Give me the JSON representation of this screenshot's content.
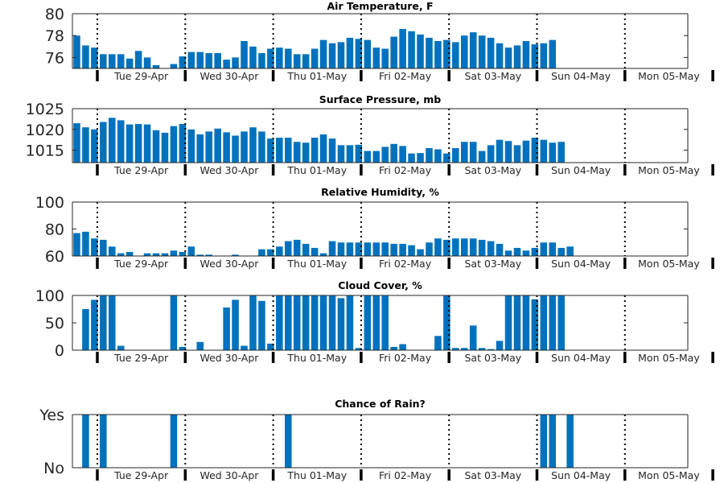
{
  "colors": {
    "bar": "#0072bd",
    "axis": "#262626",
    "divider": "#000000"
  },
  "day_labels": [
    "Tue 29-Apr",
    "Wed 30-Apr",
    "Thu 01-May",
    "Fri 02-May",
    "Sat 03-May",
    "Sun 04-May",
    "Mon 05-May"
  ],
  "chart_data": [
    {
      "type": "bar",
      "title": "Air Temperature, F",
      "ylim": [
        75,
        80
      ],
      "yticks": [
        76,
        78,
        80
      ],
      "ytick_labels": [
        "76",
        "78",
        "80"
      ],
      "x_step_hours": 3,
      "values": [
        78.0,
        77.1,
        76.9,
        76.3,
        76.3,
        76.3,
        75.9,
        76.6,
        76.0,
        75.3,
        75.0,
        75.4,
        76.1,
        76.5,
        76.5,
        76.4,
        76.4,
        75.8,
        76.0,
        77.5,
        77.0,
        76.4,
        76.8,
        76.9,
        76.8,
        76.3,
        76.3,
        76.8,
        77.6,
        77.3,
        77.4,
        77.8,
        77.7,
        77.6,
        76.9,
        76.8,
        77.9,
        78.6,
        78.4,
        78.1,
        77.8,
        77.5,
        77.6,
        77.4,
        78.0,
        78.3,
        78.0,
        77.8,
        77.3,
        76.9,
        77.1,
        77.5,
        77.2,
        77.3,
        77.6
      ]
    },
    {
      "type": "bar",
      "title": "Surface Pressure, mb",
      "ylim": [
        1012,
        1025
      ],
      "yticks": [
        1015,
        1020,
        1025
      ],
      "ytick_labels": [
        "1015",
        "1020",
        "1025"
      ],
      "x_step_hours": 3,
      "values": [
        1021.5,
        1020.5,
        1020.0,
        1021.8,
        1022.8,
        1022.2,
        1021.2,
        1021.3,
        1021.2,
        1019.8,
        1019.2,
        1020.8,
        1021.3,
        1020.0,
        1018.8,
        1019.5,
        1020.2,
        1019.3,
        1018.5,
        1019.5,
        1020.5,
        1019.5,
        1017.8,
        1018.0,
        1018.0,
        1017.0,
        1016.8,
        1018.0,
        1018.8,
        1017.8,
        1016.2,
        1016.2,
        1016.3,
        1014.8,
        1014.8,
        1015.8,
        1016.5,
        1016.0,
        1014.2,
        1014.3,
        1015.5,
        1015.2,
        1014.2,
        1015.5,
        1017.0,
        1017.0,
        1014.8,
        1016.2,
        1017.5,
        1017.2,
        1016.2,
        1017.3,
        1018.0,
        1017.5,
        1016.8,
        1017.0
      ]
    },
    {
      "type": "bar",
      "title": "Relative Humidity, %",
      "ylim": [
        60,
        100
      ],
      "yticks": [
        60,
        80,
        100
      ],
      "ytick_labels": [
        "60",
        "80",
        "100"
      ],
      "x_step_hours": 3,
      "values": [
        77,
        78,
        73,
        72,
        67,
        62,
        63,
        60,
        62,
        62,
        62,
        64,
        63,
        67,
        61,
        61,
        60,
        60,
        61,
        60,
        60,
        65,
        65,
        67,
        71,
        72,
        69,
        66,
        62,
        71,
        70,
        70,
        70,
        70,
        70,
        70,
        69,
        69,
        68,
        65,
        70,
        73,
        72,
        73,
        73,
        73,
        72,
        71,
        69,
        64,
        66,
        64,
        66,
        70,
        70,
        66,
        67
      ]
    },
    {
      "type": "bar",
      "title": "Cloud Cover, %",
      "ylim": [
        0,
        100
      ],
      "yticks": [
        0,
        50,
        100
      ],
      "ytick_labels": [
        "0",
        "50",
        "100"
      ],
      "x_step_hours": 3,
      "values": [
        0,
        75,
        92,
        100,
        100,
        8,
        0,
        0,
        0,
        0,
        0,
        100,
        6,
        0,
        15,
        0,
        0,
        78,
        92,
        8,
        100,
        90,
        12,
        100,
        100,
        100,
        100,
        100,
        100,
        100,
        95,
        100,
        4,
        100,
        100,
        100,
        6,
        11,
        0,
        0,
        0,
        26,
        100,
        4,
        4,
        45,
        4,
        2,
        17,
        100,
        100,
        100,
        93,
        100,
        100,
        100
      ]
    },
    {
      "type": "bar",
      "title": "Chance of Rain?",
      "ylim": [
        0,
        1
      ],
      "yticks": [
        0,
        1
      ],
      "ytick_labels": [
        "No",
        "Yes"
      ],
      "x_step_hours": 3,
      "values": [
        0,
        1,
        0,
        1,
        0,
        0,
        0,
        0,
        0,
        0,
        0,
        1,
        0,
        0,
        0,
        0,
        0,
        0,
        0,
        0,
        0,
        0,
        0,
        0,
        1,
        0,
        0,
        0,
        0,
        0,
        0,
        0,
        0,
        0,
        0,
        0,
        0,
        0,
        0,
        0,
        0,
        0,
        0,
        0,
        0,
        0,
        0,
        0,
        0,
        0,
        0,
        0,
        0,
        1,
        1,
        0,
        1
      ]
    }
  ]
}
